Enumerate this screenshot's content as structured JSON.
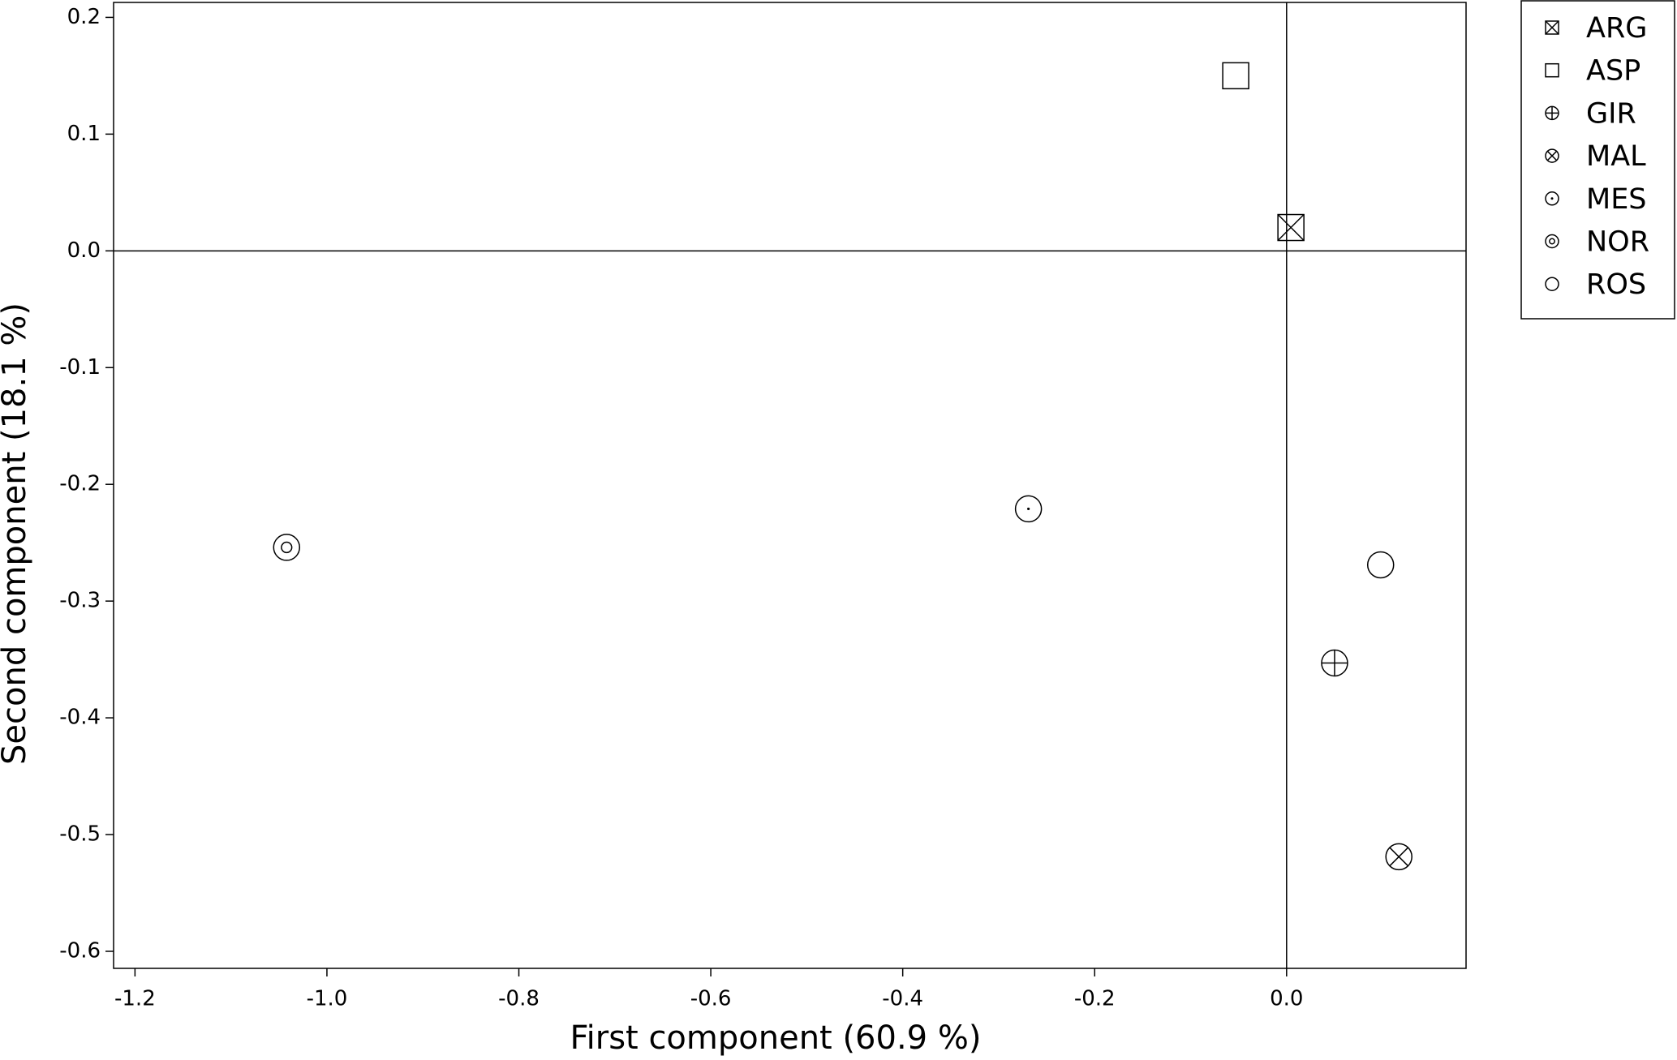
{
  "chart_data": {
    "type": "scatter",
    "x_label": "First component (60.9 %)",
    "y_label": "Second component (18.1 %)",
    "xlim": [
      -1.2223,
      0.187
    ],
    "ylim": [
      -0.6146,
      0.2128
    ],
    "xticks": [
      -1.2,
      {
        "value": -1,
        "label": "-1.0"
      },
      -0.8,
      -0.6,
      -0.4,
      -0.2,
      {
        "value": 0,
        "label": "0.0"
      }
    ],
    "yticks": [
      0.2,
      0.1,
      {
        "value": 0,
        "label": "0.0"
      },
      -0.1,
      -0.2,
      -0.3,
      -0.4,
      -0.5,
      -0.6
    ],
    "zero_lines": true,
    "legend": "outside-top-right",
    "color": "#000000",
    "series": [
      {
        "name": "ARG",
        "marker": "square-x",
        "x": [
          0.0045
        ],
        "y": [
          0.02
        ]
      },
      {
        "name": "ASP",
        "marker": "square",
        "x": [
          -0.053
        ],
        "y": [
          0.15
        ]
      },
      {
        "name": "GIR",
        "marker": "circle-plus",
        "x": [
          0.05
        ],
        "y": [
          -0.353
        ]
      },
      {
        "name": "MAL",
        "marker": "circle-x",
        "x": [
          0.117
        ],
        "y": [
          -0.519
        ]
      },
      {
        "name": "MES",
        "marker": "circle-dot",
        "x": [
          -0.269
        ],
        "y": [
          -0.221
        ]
      },
      {
        "name": "NOR",
        "marker": "circle-circle",
        "x": [
          -1.042
        ],
        "y": [
          -0.254
        ]
      },
      {
        "name": "ROS",
        "marker": "circle",
        "x": [
          0.098
        ],
        "y": [
          -0.269
        ]
      }
    ]
  }
}
